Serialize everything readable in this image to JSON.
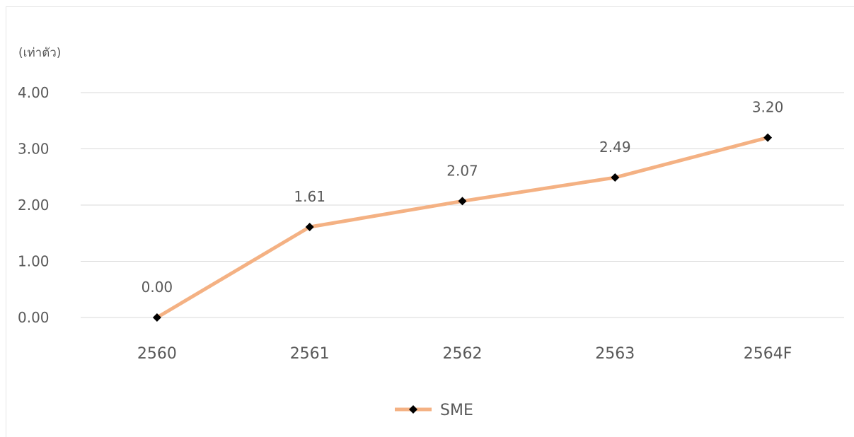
{
  "chart_data": {
    "type": "line",
    "title": "",
    "xlabel": "",
    "ylabel": "(เท่าตัว)",
    "categories": [
      "2560",
      "2561",
      "2562",
      "2563",
      "2564F"
    ],
    "series": [
      {
        "name": "SME",
        "values": [
          0.0,
          1.61,
          2.07,
          2.49,
          3.2
        ],
        "color": "#F4B183",
        "marker": "diamond",
        "marker_color": "#000000"
      }
    ],
    "data_labels": [
      "0.00",
      "1.61",
      "2.07",
      "2.49",
      "3.20"
    ],
    "ylim": [
      0,
      4
    ],
    "yticks": [
      "0.00",
      "1.00",
      "2.00",
      "3.00",
      "4.00"
    ],
    "grid": true,
    "legend": "bottom-center",
    "gridline_color": "#d9d9d9"
  }
}
